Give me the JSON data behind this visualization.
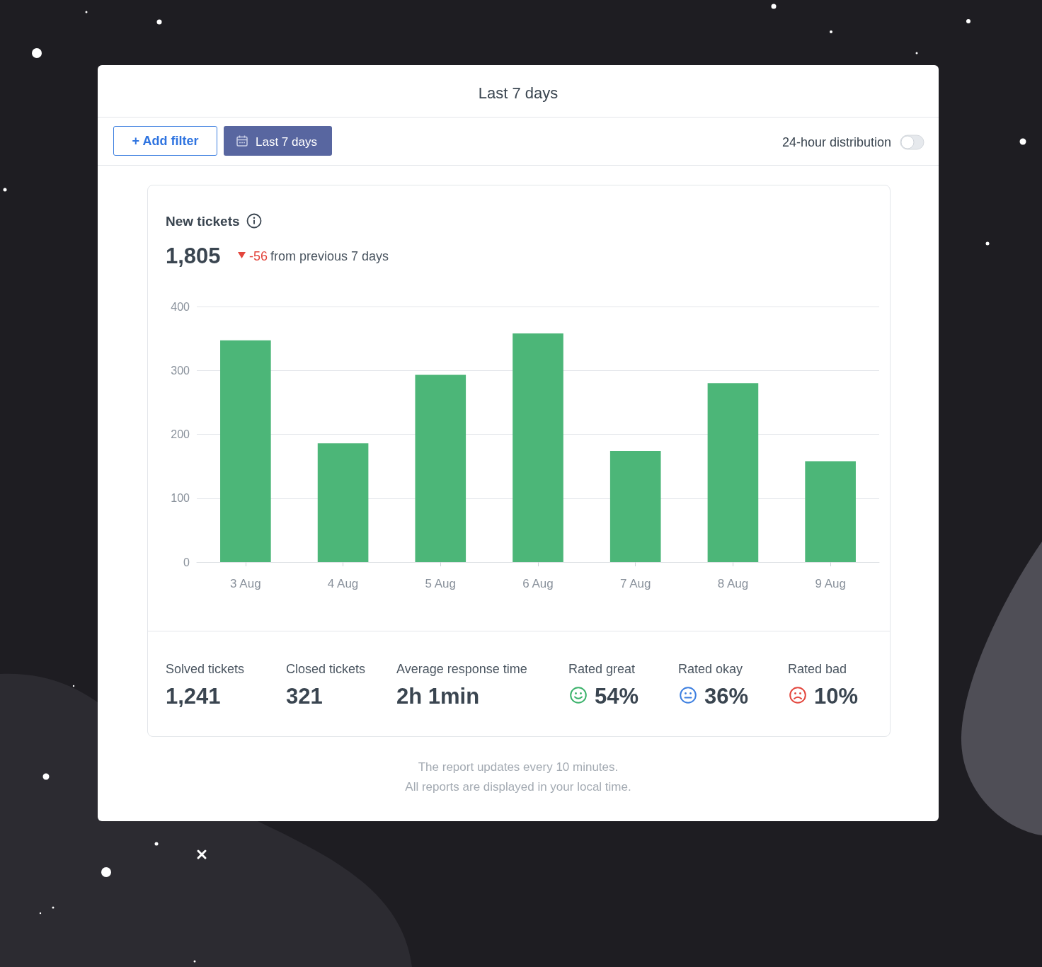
{
  "chart_data": {
    "type": "bar",
    "title": "New tickets",
    "categories": [
      "3 Aug",
      "4 Aug",
      "5 Aug",
      "6 Aug",
      "7 Aug",
      "8 Aug",
      "9 Aug"
    ],
    "values": [
      347,
      186,
      293,
      358,
      174,
      280,
      158
    ],
    "color": "#4cb678",
    "ylim": [
      0,
      400
    ],
    "yticks": [
      0,
      100,
      200,
      300,
      400
    ],
    "grid": "y",
    "annotations": [
      "Last 7 days",
      "+ Add filter",
      "Last 7 days",
      "24-hour distribution",
      "1,805",
      "-56",
      "from previous 7 days",
      "Solved tickets",
      "1,241",
      "Closed tickets",
      "321",
      "Average response time",
      "2h 1min",
      "Rated great",
      "54%",
      "Rated okay",
      "36%",
      "Rated bad",
      "10%",
      "The report updates every 10 minutes.",
      "All reports are displayed in your local time."
    ]
  }
}
